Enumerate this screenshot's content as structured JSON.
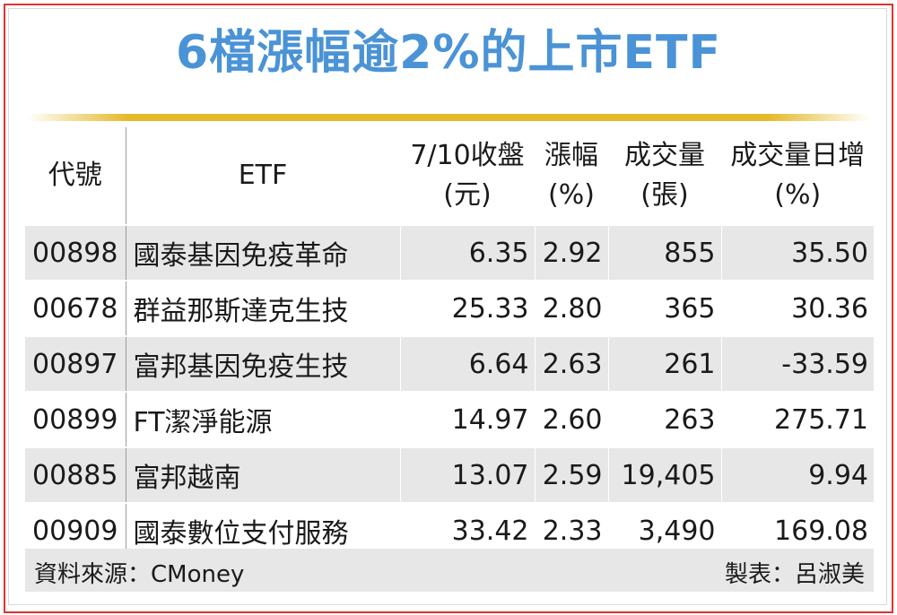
{
  "title": "6檔漲幅逾2%的上市ETF",
  "colors": {
    "title": "#4a93d6",
    "border": "#e0342f",
    "rule": "#e6b92a",
    "row_shade": "#e7e7e7"
  },
  "chart_data": {
    "type": "table",
    "title": "6檔漲幅逾2%的上市ETF",
    "columns": [
      {
        "line1": "代號",
        "line2": ""
      },
      {
        "line1": "ETF",
        "line2": ""
      },
      {
        "line1": "7/10收盤",
        "line2": "(元)"
      },
      {
        "line1": "漲幅",
        "line2": "(%)"
      },
      {
        "line1": "成交量",
        "line2": "(張)"
      },
      {
        "line1": "成交量日增",
        "line2": "(%)"
      }
    ],
    "rows": [
      {
        "code": "00898",
        "name": "國泰基因免疫革命",
        "close": "6.35",
        "change": "2.92",
        "volume": "855",
        "volume_growth": "35.50"
      },
      {
        "code": "00678",
        "name": "群益那斯達克生技",
        "close": "25.33",
        "change": "2.80",
        "volume": "365",
        "volume_growth": "30.36"
      },
      {
        "code": "00897",
        "name": "富邦基因免疫生技",
        "close": "6.64",
        "change": "2.63",
        "volume": "261",
        "volume_growth": "-33.59"
      },
      {
        "code": "00899",
        "name": "FT潔淨能源",
        "close": "14.97",
        "change": "2.60",
        "volume": "263",
        "volume_growth": "275.71"
      },
      {
        "code": "00885",
        "name": "富邦越南",
        "close": "13.07",
        "change": "2.59",
        "volume": "19,405",
        "volume_growth": "9.94"
      },
      {
        "code": "00909",
        "name": "國泰數位支付服務",
        "close": "33.42",
        "change": "2.33",
        "volume": "3,490",
        "volume_growth": "169.08"
      }
    ]
  },
  "footer": {
    "source": "資料來源：CMoney",
    "maker": "製表：呂淑美"
  }
}
